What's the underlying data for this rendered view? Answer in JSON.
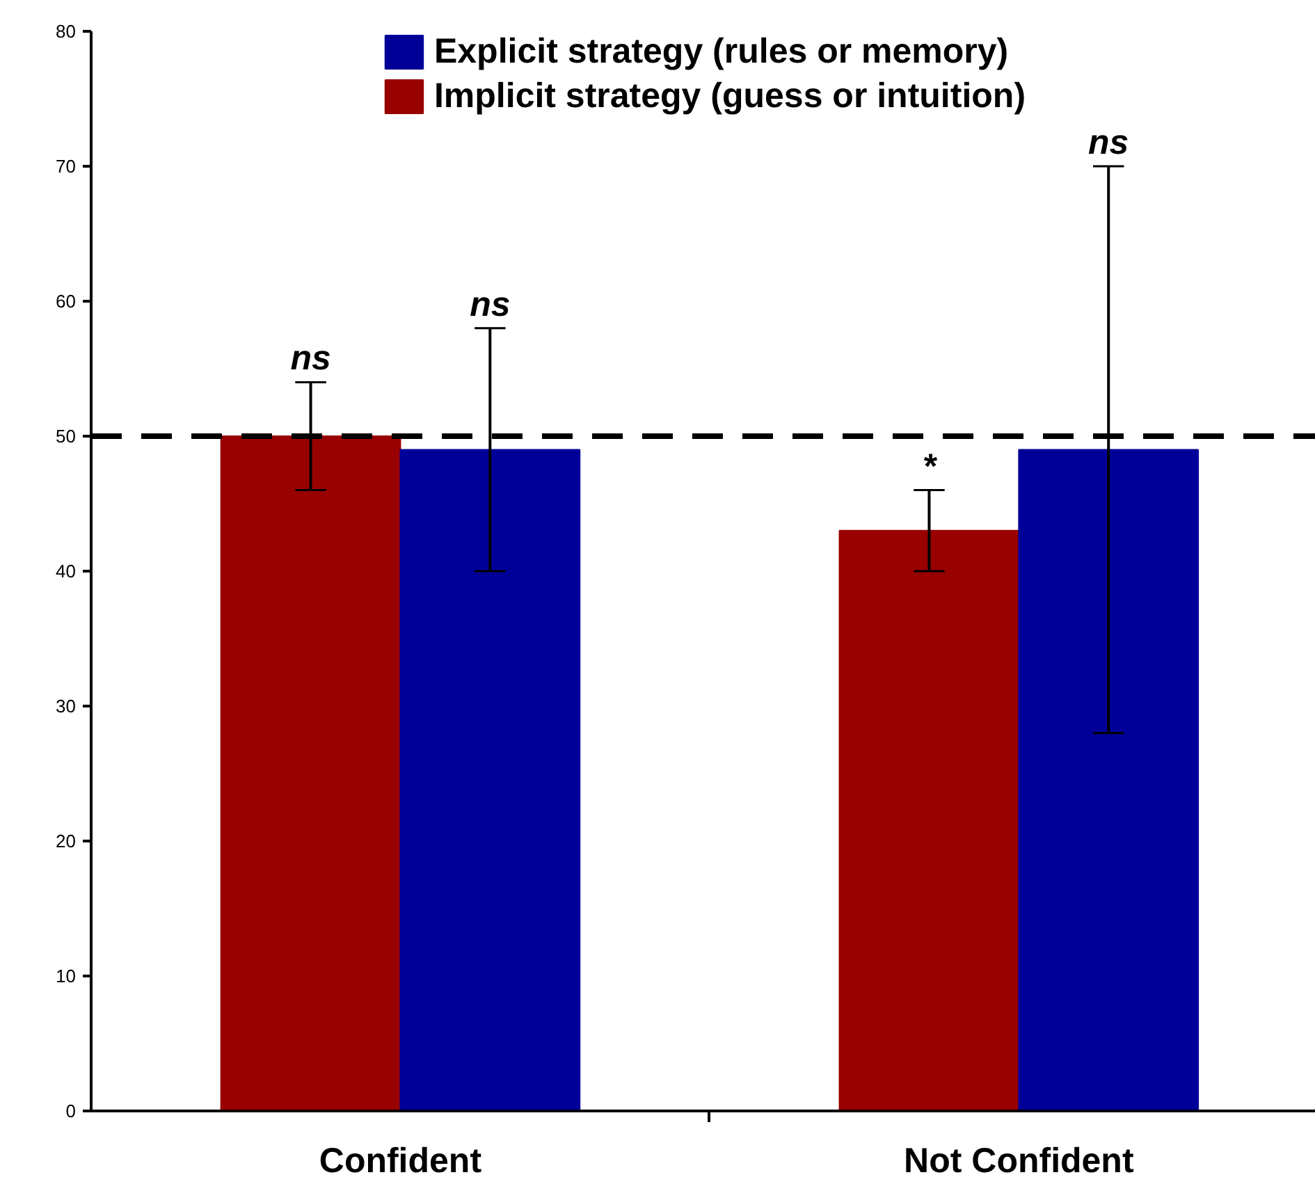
{
  "chart_data": {
    "type": "bar",
    "categories": [
      "Confident",
      "Not Confident"
    ],
    "series": [
      {
        "name": "Implicit strategy (guess or intuition)",
        "color": "#990000",
        "values": [
          50,
          43
        ],
        "errors": [
          [
            46,
            54
          ],
          [
            40,
            46
          ]
        ]
      },
      {
        "name": "Explicit strategy (rules or memory)",
        "color": "#000099",
        "values": [
          49,
          49
        ],
        "errors": [
          [
            40,
            58
          ],
          [
            28,
            70
          ]
        ]
      }
    ],
    "ylim": [
      0,
      80
    ],
    "yticks": [
      0,
      10,
      20,
      30,
      40,
      50,
      60,
      70,
      80
    ],
    "grid": false,
    "legend": "top",
    "ref_lines": [
      {
        "axis": "y",
        "value": 50,
        "color": "#000000",
        "line_style": "dashed"
      }
    ],
    "annotations": [
      "ns",
      "ns",
      "*",
      "ns"
    ]
  }
}
